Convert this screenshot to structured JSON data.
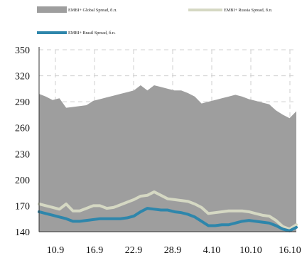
{
  "chart_data": {
    "type": "area",
    "title": "",
    "xlabel": "",
    "ylabel": "",
    "ylim": [
      140,
      350
    ],
    "yticks": [
      140,
      170,
      200,
      230,
      260,
      290,
      320,
      350
    ],
    "x_tick_labels": [
      "10.9",
      "16.9",
      "22.9",
      "28.9",
      "4.10",
      "10.10",
      "16.10"
    ],
    "grid": true,
    "legend_position": "top",
    "series": [
      {
        "name": "EMBI+ Global Spread, б.п.",
        "render": "area",
        "color": "#9e9e9e",
        "values": [
          299,
          296,
          292,
          294,
          283,
          284,
          285,
          286,
          291,
          293,
          295,
          297,
          299,
          301,
          303,
          309,
          303,
          309,
          307,
          305,
          303,
          303,
          300,
          296,
          288,
          290,
          292,
          294,
          296,
          298,
          296,
          293,
          291,
          289,
          287,
          280,
          275,
          271,
          279
        ]
      },
      {
        "name": "EMBI+ Russia Spread, б.п.",
        "render": "line",
        "color": "#d5d8c3",
        "values": [
          172,
          170,
          168,
          166,
          172,
          164,
          164,
          167,
          170,
          170,
          167,
          168,
          171,
          174,
          177,
          181,
          182,
          186,
          182,
          178,
          177,
          176,
          175,
          172,
          168,
          161,
          162,
          163,
          164,
          164,
          164,
          163,
          161,
          159,
          158,
          153,
          146,
          143,
          148
        ]
      },
      {
        "name": "EMBI+ Brasil Spread, б.п.",
        "render": "line",
        "color": "#2e86ab",
        "values": [
          163,
          161,
          159,
          157,
          155,
          152,
          152,
          153,
          154,
          155,
          155,
          155,
          155,
          156,
          158,
          163,
          167,
          166,
          165,
          165,
          163,
          162,
          160,
          157,
          152,
          147,
          147,
          148,
          148,
          150,
          152,
          153,
          152,
          151,
          150,
          147,
          143,
          141,
          145
        ]
      }
    ]
  }
}
